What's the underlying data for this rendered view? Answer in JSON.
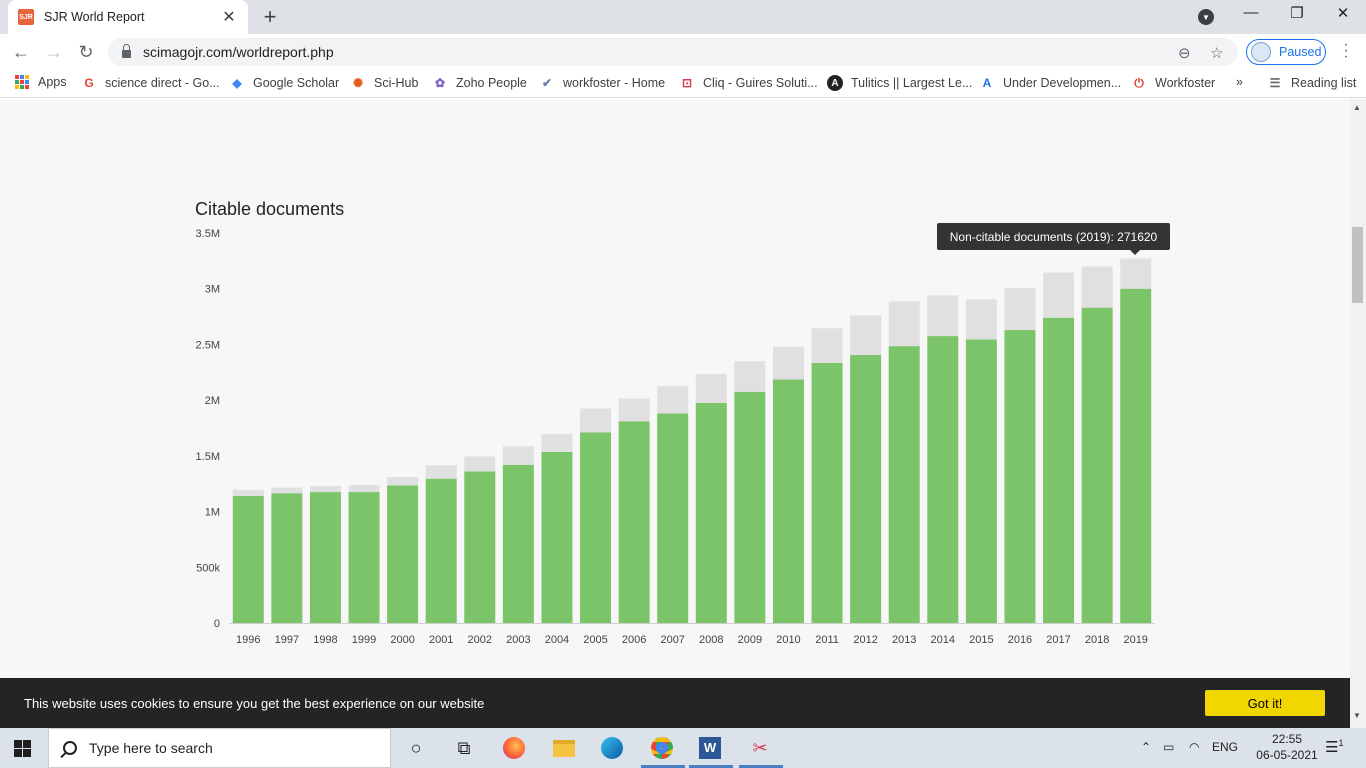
{
  "browser": {
    "tab_title": "SJR World Report",
    "favicon_text": "SJR",
    "url": "scimagojr.com/worldreport.php",
    "profile_status": "Paused"
  },
  "bookmarks": [
    {
      "label": "Apps",
      "icon": "apps-grid-icon"
    },
    {
      "label": "science direct - Go...",
      "icon": "google-icon"
    },
    {
      "label": "Google Scholar",
      "icon": "scholar-icon"
    },
    {
      "label": "Sci-Hub",
      "icon": "scihub-icon"
    },
    {
      "label": "Zoho People",
      "icon": "zoho-icon"
    },
    {
      "label": "workfoster - Home",
      "icon": "check-icon"
    },
    {
      "label": "Cliq - Guires Soluti...",
      "icon": "cliq-icon"
    },
    {
      "label": "Tulitics || Largest Le...",
      "icon": "angular-icon"
    },
    {
      "label": "Under Developmen...",
      "icon": "a-letter-icon"
    },
    {
      "label": "Workfoster",
      "icon": "power-icon"
    }
  ],
  "bookmarks_overflow": "»",
  "reading_list": "Reading list",
  "chart_data": {
    "type": "bar",
    "title": "Citable documents",
    "categories": [
      "1996",
      "1997",
      "1998",
      "1999",
      "2000",
      "2001",
      "2002",
      "2003",
      "2004",
      "2005",
      "2006",
      "2007",
      "2008",
      "2009",
      "2010",
      "2011",
      "2012",
      "2013",
      "2014",
      "2015",
      "2016",
      "2017",
      "2018",
      "2019"
    ],
    "series": [
      {
        "name": "Citable documents",
        "color": "#7cc46a",
        "values": [
          1140000,
          1165000,
          1175000,
          1175000,
          1235000,
          1295000,
          1360000,
          1420000,
          1535000,
          1710000,
          1810000,
          1880000,
          1975000,
          2075000,
          2185000,
          2335000,
          2405000,
          2485000,
          2575000,
          2545000,
          2630000,
          2740000,
          2830000,
          3000000
        ]
      },
      {
        "name": "Non-citable documents",
        "color": "#e0e0e0",
        "values": [
          55000,
          50000,
          55000,
          65000,
          75000,
          120000,
          135000,
          165000,
          160000,
          215000,
          205000,
          245000,
          260000,
          275000,
          295000,
          310000,
          355000,
          400000,
          365000,
          360000,
          375000,
          405000,
          370000,
          271620
        ]
      }
    ],
    "yticks": [
      0,
      500000,
      1000000,
      1500000,
      2000000,
      2500000,
      3000000,
      3500000
    ],
    "ytick_labels": [
      "0",
      "500k",
      "1M",
      "1.5M",
      "2M",
      "2.5M",
      "3M",
      "3.5M"
    ],
    "ylim": [
      0,
      3500000
    ],
    "stacked": true,
    "tooltip": "Non-citable documents (2019): 271620"
  },
  "cookie": {
    "message": "This website uses cookies to ensure you get the best experience on our website",
    "button": "Got it!"
  },
  "taskbar": {
    "search_placeholder": "Type here to search",
    "language": "ENG",
    "time": "22:55",
    "date": "06-05-2021",
    "notifications": "1"
  }
}
